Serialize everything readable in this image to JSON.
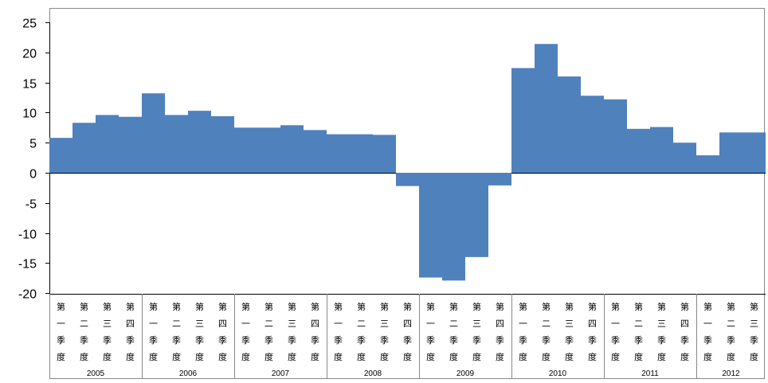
{
  "chart_data": {
    "type": "bar",
    "title": "",
    "xlabel": "",
    "ylabel": "",
    "ylim": [
      -20,
      25
    ],
    "yticks": [
      25,
      20,
      15,
      10,
      5,
      0,
      -5,
      -10,
      -15,
      -20
    ],
    "grid": false,
    "legend": "none",
    "bar_color": "#4F81BD",
    "quarter_labels": [
      "第一季度",
      "第二季度",
      "第三季度",
      "第四季度"
    ],
    "years": [
      {
        "label": "2005",
        "values": [
          5.8,
          8.3,
          9.6,
          9.3
        ]
      },
      {
        "label": "2006",
        "values": [
          13.2,
          9.6,
          10.3,
          9.4
        ]
      },
      {
        "label": "2007",
        "values": [
          7.5,
          7.5,
          7.9,
          7.1
        ]
      },
      {
        "label": "2008",
        "values": [
          6.4,
          6.4,
          6.3,
          -2.2
        ]
      },
      {
        "label": "2009",
        "values": [
          -17.4,
          -17.9,
          -14.0,
          -2.1
        ]
      },
      {
        "label": "2010",
        "values": [
          17.4,
          21.4,
          16.0,
          12.8
        ]
      },
      {
        "label": "2011",
        "values": [
          12.2,
          7.3,
          7.6,
          5.0
        ]
      },
      {
        "label": "2012",
        "values": [
          2.9,
          6.7,
          6.7
        ]
      }
    ]
  }
}
